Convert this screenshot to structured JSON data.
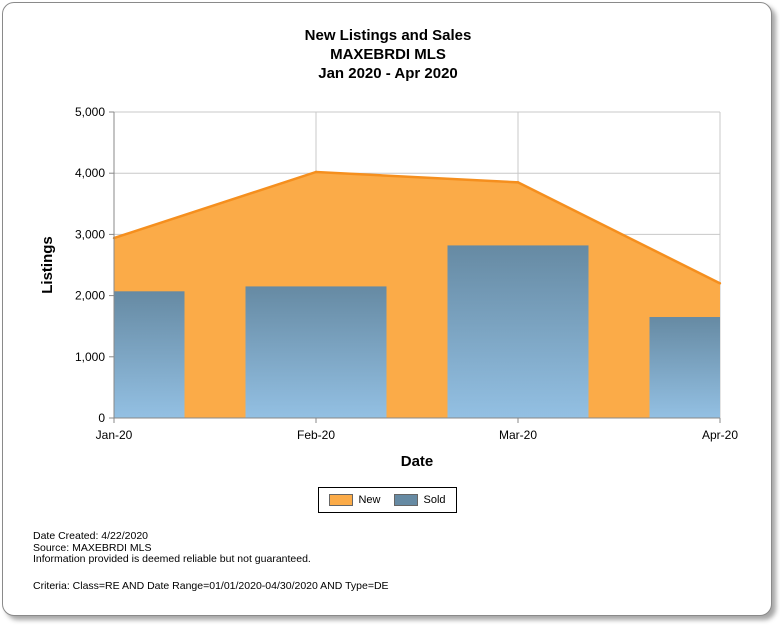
{
  "titles": {
    "line1": "New Listings and Sales",
    "line2": "MAXEBRDI MLS",
    "line3": "Jan 2020 - Apr 2020"
  },
  "chart_data": {
    "type": "area",
    "title": "New Listings and Sales",
    "subtitle": "MAXEBRDI MLS Jan 2020 - Apr 2020",
    "xlabel": "Date",
    "ylabel": "Listings",
    "categories": [
      "Jan-20",
      "Feb-20",
      "Mar-20",
      "Apr-20"
    ],
    "y_ticks": [
      "0",
      "1,000",
      "2,000",
      "3,000",
      "4,000",
      "5,000"
    ],
    "ylim": [
      0,
      5000
    ],
    "grid": true,
    "legend_position": "bottom",
    "series": [
      {
        "name": "New",
        "type": "area",
        "values": [
          2940,
          4020,
          3850,
          2200
        ],
        "color": "#fbab48",
        "line_color": "#f58f1e"
      },
      {
        "name": "Sold",
        "type": "bar",
        "values": [
          2070,
          2150,
          2820,
          1650
        ],
        "color_top": "#668aa3",
        "color_bottom": "#93c0e3"
      }
    ]
  },
  "legend": {
    "new_label": "New",
    "sold_label": "Sold"
  },
  "footer": {
    "date_created": "Date Created: 4/22/2020",
    "source": "Source: MAXEBRDI MLS",
    "disclaimer": "Information provided is deemed reliable but not guaranteed.",
    "criteria": "Criteria: Class=RE AND Date Range=01/01/2020-04/30/2020 AND Type=DE"
  }
}
